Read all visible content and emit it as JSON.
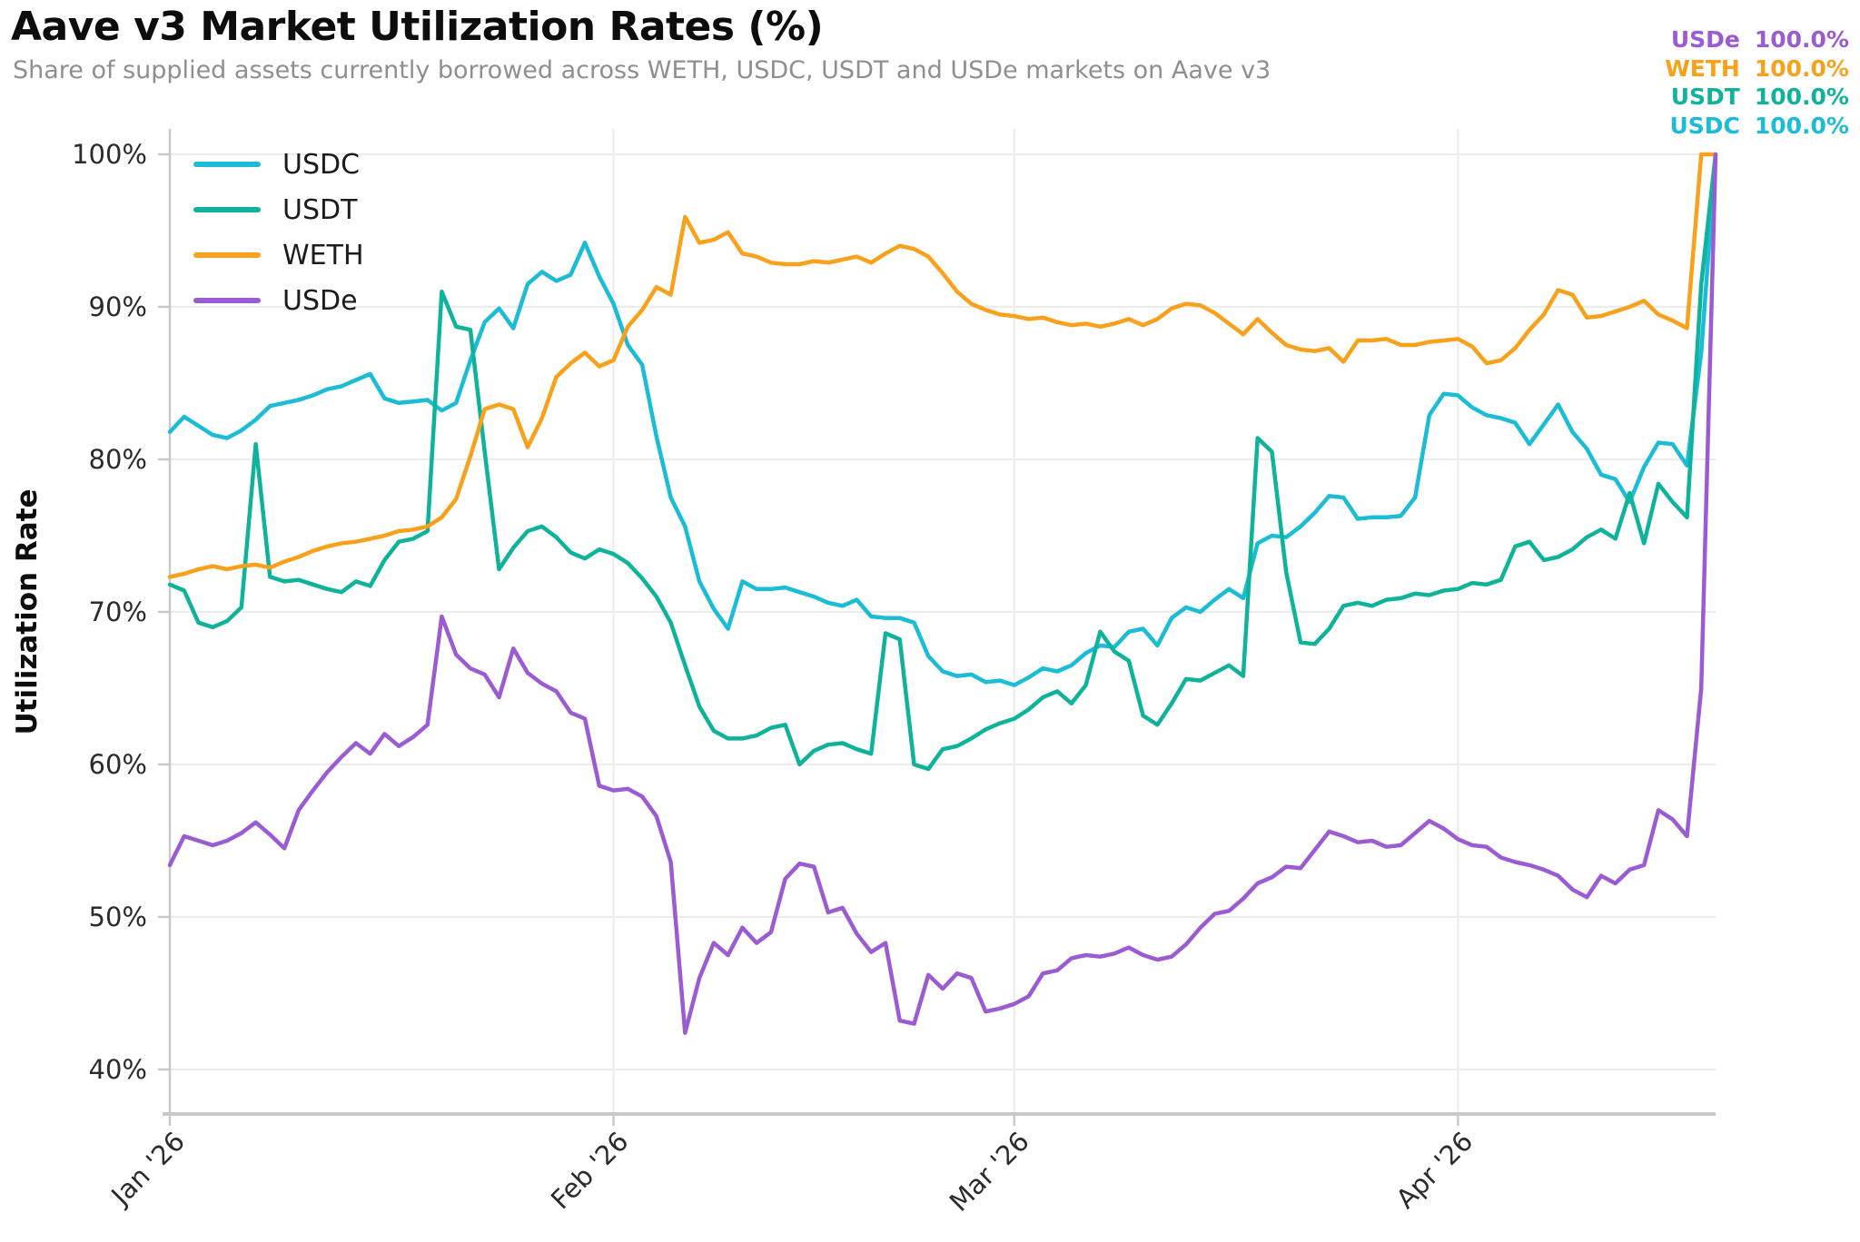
{
  "header": {
    "title": "Aave v3 Market Utilization Rates (%)",
    "subtitle": "Share of supplied assets currently borrowed across WETH, USDC, USDT and USDe markets on Aave v3"
  },
  "current_values": [
    {
      "label": "USDe",
      "value": "100.0%",
      "color": "#9A5BD3"
    },
    {
      "label": "WETH",
      "value": "100.0%",
      "color": "#F9A11B"
    },
    {
      "label": "USDT",
      "value": "100.0%",
      "color": "#0FB39B"
    },
    {
      "label": "USDC",
      "value": "100.0%",
      "color": "#1ABCD6"
    }
  ],
  "colors": {
    "grid": "#ececec",
    "axis": "#c9c9c9",
    "tick_label": "#2b2b2b",
    "title": "#0d0d0d",
    "subtitle": "#8f8f8f"
  },
  "chart_data": {
    "type": "line",
    "title": "Aave v3 Market Utilization Rates (%)",
    "subtitle": "Share of supplied assets currently borrowed across WETH, USDC, USDT and USDe markets on Aave v3",
    "xlabel": "",
    "ylabel": "Utilization Rate",
    "grid": true,
    "legend_position": "top-left",
    "x_unit": "daily, days since Jan 1 '26 (last point Apr 19 '26)",
    "ylim": [
      37,
      101
    ],
    "y_ticks": [
      {
        "value": 100,
        "label": "100%"
      },
      {
        "value": 90,
        "label": "90%"
      },
      {
        "value": 80,
        "label": "80%"
      },
      {
        "value": 70,
        "label": "70%"
      },
      {
        "value": 60,
        "label": "60%"
      },
      {
        "value": 50,
        "label": "50%"
      },
      {
        "value": 40,
        "label": "40%"
      }
    ],
    "x_ticks": [
      {
        "day": 0,
        "label": "Jan '26"
      },
      {
        "day": 31,
        "label": "Feb '26"
      },
      {
        "day": 59,
        "label": "Mar '26"
      },
      {
        "day": 90,
        "label": "Apr '26"
      }
    ],
    "series": [
      {
        "name": "USDC",
        "color": "#1ABCD6",
        "values": [
          81.8,
          82.8,
          82.2,
          81.6,
          81.4,
          81.9,
          82.6,
          83.5,
          83.7,
          83.9,
          84.2,
          84.6,
          84.8,
          85.2,
          85.6,
          84.0,
          83.7,
          83.8,
          83.9,
          83.2,
          83.7,
          86.5,
          89.0,
          89.9,
          88.6,
          91.5,
          92.3,
          91.7,
          92.1,
          94.2,
          92.0,
          90.2,
          87.5,
          86.2,
          81.5,
          77.5,
          75.6,
          72.0,
          70.2,
          68.9,
          72.0,
          71.5,
          71.5,
          71.6,
          71.3,
          71.0,
          70.6,
          70.4,
          70.8,
          69.7,
          69.6,
          69.6,
          69.3,
          67.1,
          66.1,
          65.8,
          65.9,
          65.4,
          65.5,
          65.2,
          65.7,
          66.3,
          66.1,
          66.5,
          67.3,
          67.8,
          67.7,
          68.7,
          68.9,
          67.8,
          69.6,
          70.3,
          70.0,
          70.8,
          71.5,
          70.9,
          74.5,
          75.0,
          74.9,
          75.6,
          76.5,
          77.6,
          77.5,
          76.1,
          76.2,
          76.2,
          76.3,
          77.5,
          82.9,
          84.3,
          84.2,
          83.4,
          82.9,
          82.7,
          82.4,
          81.0,
          82.3,
          83.6,
          81.8,
          80.7,
          79.0,
          78.7,
          77.2,
          79.5,
          81.1,
          81.0,
          79.6,
          87.0,
          100.0
        ]
      },
      {
        "name": "USDT",
        "color": "#0FB39B",
        "values": [
          71.8,
          71.4,
          69.3,
          69.0,
          69.4,
          70.3,
          81.0,
          72.3,
          72.0,
          72.1,
          71.8,
          71.5,
          71.3,
          72.0,
          71.7,
          73.4,
          74.6,
          74.8,
          75.3,
          91.0,
          88.7,
          88.5,
          80.5,
          72.8,
          74.2,
          75.3,
          75.6,
          74.9,
          73.9,
          73.5,
          74.1,
          73.8,
          73.2,
          72.2,
          71.0,
          69.3,
          66.5,
          63.8,
          62.2,
          61.7,
          61.7,
          61.9,
          62.4,
          62.6,
          60.0,
          60.9,
          61.3,
          61.4,
          61.0,
          60.7,
          68.6,
          68.2,
          60.0,
          59.7,
          61.0,
          61.2,
          61.7,
          62.3,
          62.7,
          63.0,
          63.6,
          64.4,
          64.8,
          64.0,
          65.2,
          68.7,
          67.4,
          66.8,
          63.2,
          62.6,
          64.0,
          65.6,
          65.5,
          66.0,
          66.5,
          65.8,
          81.4,
          80.5,
          72.6,
          68.0,
          67.9,
          68.9,
          70.4,
          70.6,
          70.4,
          70.8,
          70.9,
          71.2,
          71.1,
          71.4,
          71.5,
          71.9,
          71.8,
          72.1,
          74.3,
          74.6,
          73.4,
          73.6,
          74.1,
          74.9,
          75.4,
          74.8,
          77.8,
          74.5,
          78.4,
          77.2,
          76.2,
          91.5,
          100.0
        ]
      },
      {
        "name": "WETH",
        "color": "#F9A11B",
        "values": [
          72.3,
          72.5,
          72.8,
          73.0,
          72.8,
          73.0,
          73.1,
          72.9,
          73.3,
          73.6,
          74.0,
          74.3,
          74.5,
          74.6,
          74.8,
          75.0,
          75.3,
          75.4,
          75.6,
          76.2,
          77.4,
          80.2,
          83.3,
          83.6,
          83.3,
          80.8,
          82.7,
          85.4,
          86.3,
          87.0,
          86.1,
          86.5,
          88.7,
          89.8,
          91.3,
          90.8,
          95.9,
          94.2,
          94.4,
          94.9,
          93.5,
          93.3,
          92.9,
          92.8,
          92.8,
          93.0,
          92.9,
          93.1,
          93.3,
          92.9,
          93.5,
          94.0,
          93.8,
          93.3,
          92.2,
          91.0,
          90.2,
          89.8,
          89.5,
          89.4,
          89.2,
          89.3,
          89.0,
          88.8,
          88.9,
          88.7,
          88.9,
          89.2,
          88.8,
          89.2,
          89.9,
          90.2,
          90.1,
          89.6,
          88.9,
          88.2,
          89.2,
          88.3,
          87.5,
          87.2,
          87.1,
          87.3,
          86.4,
          87.8,
          87.8,
          87.9,
          87.5,
          87.5,
          87.7,
          87.8,
          87.9,
          87.4,
          86.3,
          86.5,
          87.3,
          88.5,
          89.5,
          91.1,
          90.8,
          89.3,
          89.4,
          89.7,
          90.0,
          90.4,
          89.5,
          89.1,
          88.6,
          100.0,
          100.0
        ]
      },
      {
        "name": "USDe",
        "color": "#9A5BD3",
        "values": [
          53.4,
          55.3,
          55.0,
          54.7,
          55.0,
          55.5,
          56.2,
          55.4,
          54.5,
          57.0,
          58.3,
          59.5,
          60.5,
          61.4,
          60.7,
          62.0,
          61.2,
          61.8,
          62.6,
          69.7,
          67.2,
          66.3,
          65.9,
          64.4,
          67.6,
          66.0,
          65.3,
          64.8,
          63.4,
          63.0,
          58.6,
          58.3,
          58.4,
          57.9,
          56.6,
          53.6,
          42.4,
          46.0,
          48.3,
          47.5,
          49.3,
          48.3,
          49.0,
          52.5,
          53.5,
          53.3,
          50.3,
          50.6,
          48.9,
          47.7,
          48.3,
          43.2,
          43.0,
          46.2,
          45.3,
          46.3,
          46.0,
          43.8,
          44.0,
          44.3,
          44.8,
          46.3,
          46.5,
          47.3,
          47.5,
          47.4,
          47.6,
          48.0,
          47.5,
          47.2,
          47.4,
          48.2,
          49.3,
          50.2,
          50.4,
          51.2,
          52.2,
          52.6,
          53.3,
          53.2,
          54.4,
          55.6,
          55.3,
          54.9,
          55.0,
          54.6,
          54.7,
          55.5,
          56.3,
          55.8,
          55.1,
          54.7,
          54.6,
          53.9,
          53.6,
          53.4,
          53.1,
          52.7,
          51.8,
          51.3,
          52.7,
          52.2,
          53.1,
          53.4,
          57.0,
          56.4,
          55.3,
          65.0,
          100.0
        ]
      }
    ],
    "legend_order": [
      "USDC",
      "USDT",
      "WETH",
      "USDe"
    ]
  }
}
